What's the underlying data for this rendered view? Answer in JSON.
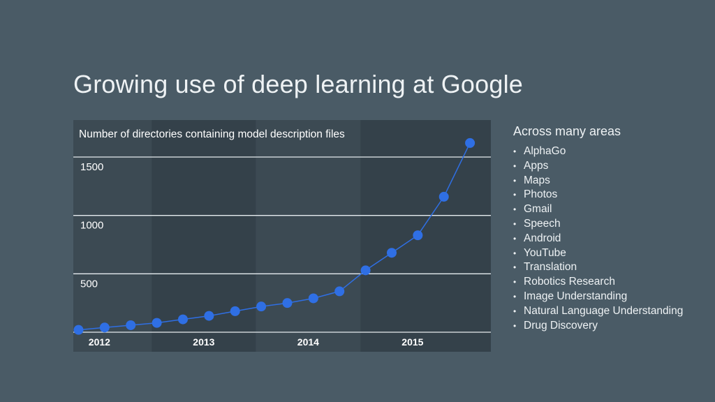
{
  "slide": {
    "title": "Growing use of deep learning at Google"
  },
  "side_panel": {
    "heading": "Across many areas",
    "items": [
      "AlphaGo",
      "Apps",
      "Maps",
      "Photos",
      "Gmail",
      "Speech",
      "Android",
      "YouTube",
      "Translation",
      "Robotics Research",
      "Image Understanding",
      "Natural Language Understanding",
      "Drug Discovery"
    ]
  },
  "colors": {
    "background": "#4a5b66",
    "panel_light": "#3c4a53",
    "panel_dark": "#34414a",
    "series": "#2f6fe4",
    "gridline": "#e6ecef"
  },
  "chart_data": {
    "type": "line",
    "title": "Number of directories containing model description files",
    "xlabel": "",
    "ylabel": "",
    "x_tick_labels": [
      "2012",
      "2013",
      "2014",
      "2015"
    ],
    "y_ticks": [
      500,
      1000,
      1500
    ],
    "xlim": [
      2011.75,
      2015.75
    ],
    "ylim": [
      0,
      1500
    ],
    "grid": true,
    "legend": "none",
    "series": [
      {
        "name": "",
        "x": [
          2011.8,
          2012.05,
          2012.3,
          2012.55,
          2012.8,
          2013.05,
          2013.3,
          2013.55,
          2013.8,
          2014.05,
          2014.3,
          2014.55,
          2014.8,
          2015.05,
          2015.3,
          2015.55
        ],
        "values": [
          20,
          40,
          60,
          80,
          110,
          140,
          180,
          220,
          250,
          290,
          350,
          530,
          680,
          830,
          1160,
          1620
        ]
      }
    ]
  }
}
